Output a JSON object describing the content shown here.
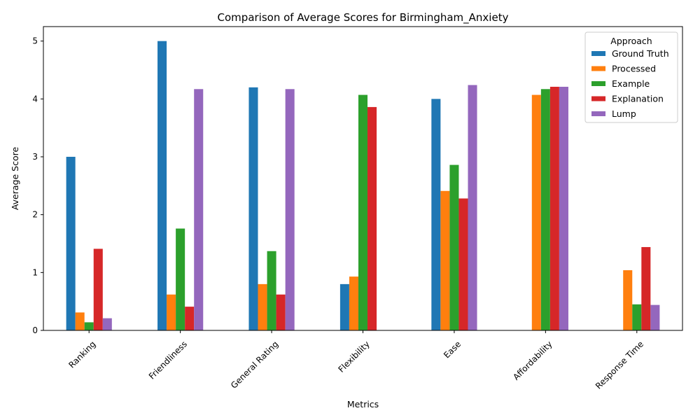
{
  "chart_data": {
    "type": "bar",
    "title": "Comparison of Average Scores for Birmingham_Anxiety",
    "xlabel": "Metrics",
    "ylabel": "Average Score",
    "ylim": [
      0,
      5.25
    ],
    "yticks": [
      0,
      1,
      2,
      3,
      4,
      5
    ],
    "categories": [
      "Ranking",
      "Friendliness",
      "General Rating",
      "Flexibility",
      "Ease",
      "Affordability",
      "Response Time"
    ],
    "legend": {
      "title": "Approach",
      "placement": "top-right"
    },
    "grid": false,
    "series": [
      {
        "name": "Ground Truth",
        "color": "#1f77b4",
        "values": [
          3.0,
          5.0,
          4.2,
          0.8,
          4.0,
          0,
          0
        ]
      },
      {
        "name": "Processed",
        "color": "#ff7f0e",
        "values": [
          0.31,
          0.62,
          0.8,
          0.93,
          2.41,
          4.07,
          1.04
        ]
      },
      {
        "name": "Example",
        "color": "#2ca02c",
        "values": [
          0.14,
          1.76,
          1.37,
          4.07,
          2.86,
          4.17,
          0.45
        ]
      },
      {
        "name": "Explanation",
        "color": "#d62728",
        "values": [
          1.41,
          0.41,
          0.62,
          3.86,
          2.28,
          4.21,
          1.44
        ]
      },
      {
        "name": "Lump",
        "color": "#9467bd",
        "values": [
          0.21,
          4.17,
          4.17,
          0,
          4.24,
          4.21,
          0.44
        ]
      }
    ]
  }
}
